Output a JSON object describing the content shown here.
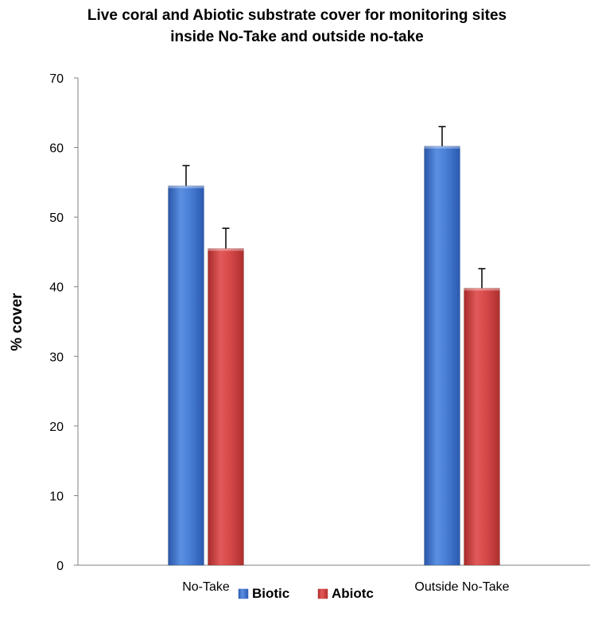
{
  "chart_data": {
    "type": "bar",
    "title_lines": [
      "Live coral and Abiotic substrate cover for monitoring sites",
      "inside No-Take and outside no-take"
    ],
    "xlabel": "",
    "ylabel": "% cover",
    "ylim": [
      0,
      70
    ],
    "yticks": [
      0,
      10,
      20,
      30,
      40,
      50,
      60,
      70
    ],
    "categories": [
      "No-Take",
      "Outside No-Take"
    ],
    "series": [
      {
        "name": "Biotic",
        "values": [
          54.5,
          60.2
        ],
        "errors": [
          2.9,
          2.8
        ],
        "color": "#3b6fc9"
      },
      {
        "name": "Abiotc",
        "values": [
          45.5,
          39.8
        ],
        "errors": [
          2.9,
          2.8
        ],
        "color": "#c93c3c"
      }
    ],
    "grid": false,
    "legend_position": "bottom"
  }
}
